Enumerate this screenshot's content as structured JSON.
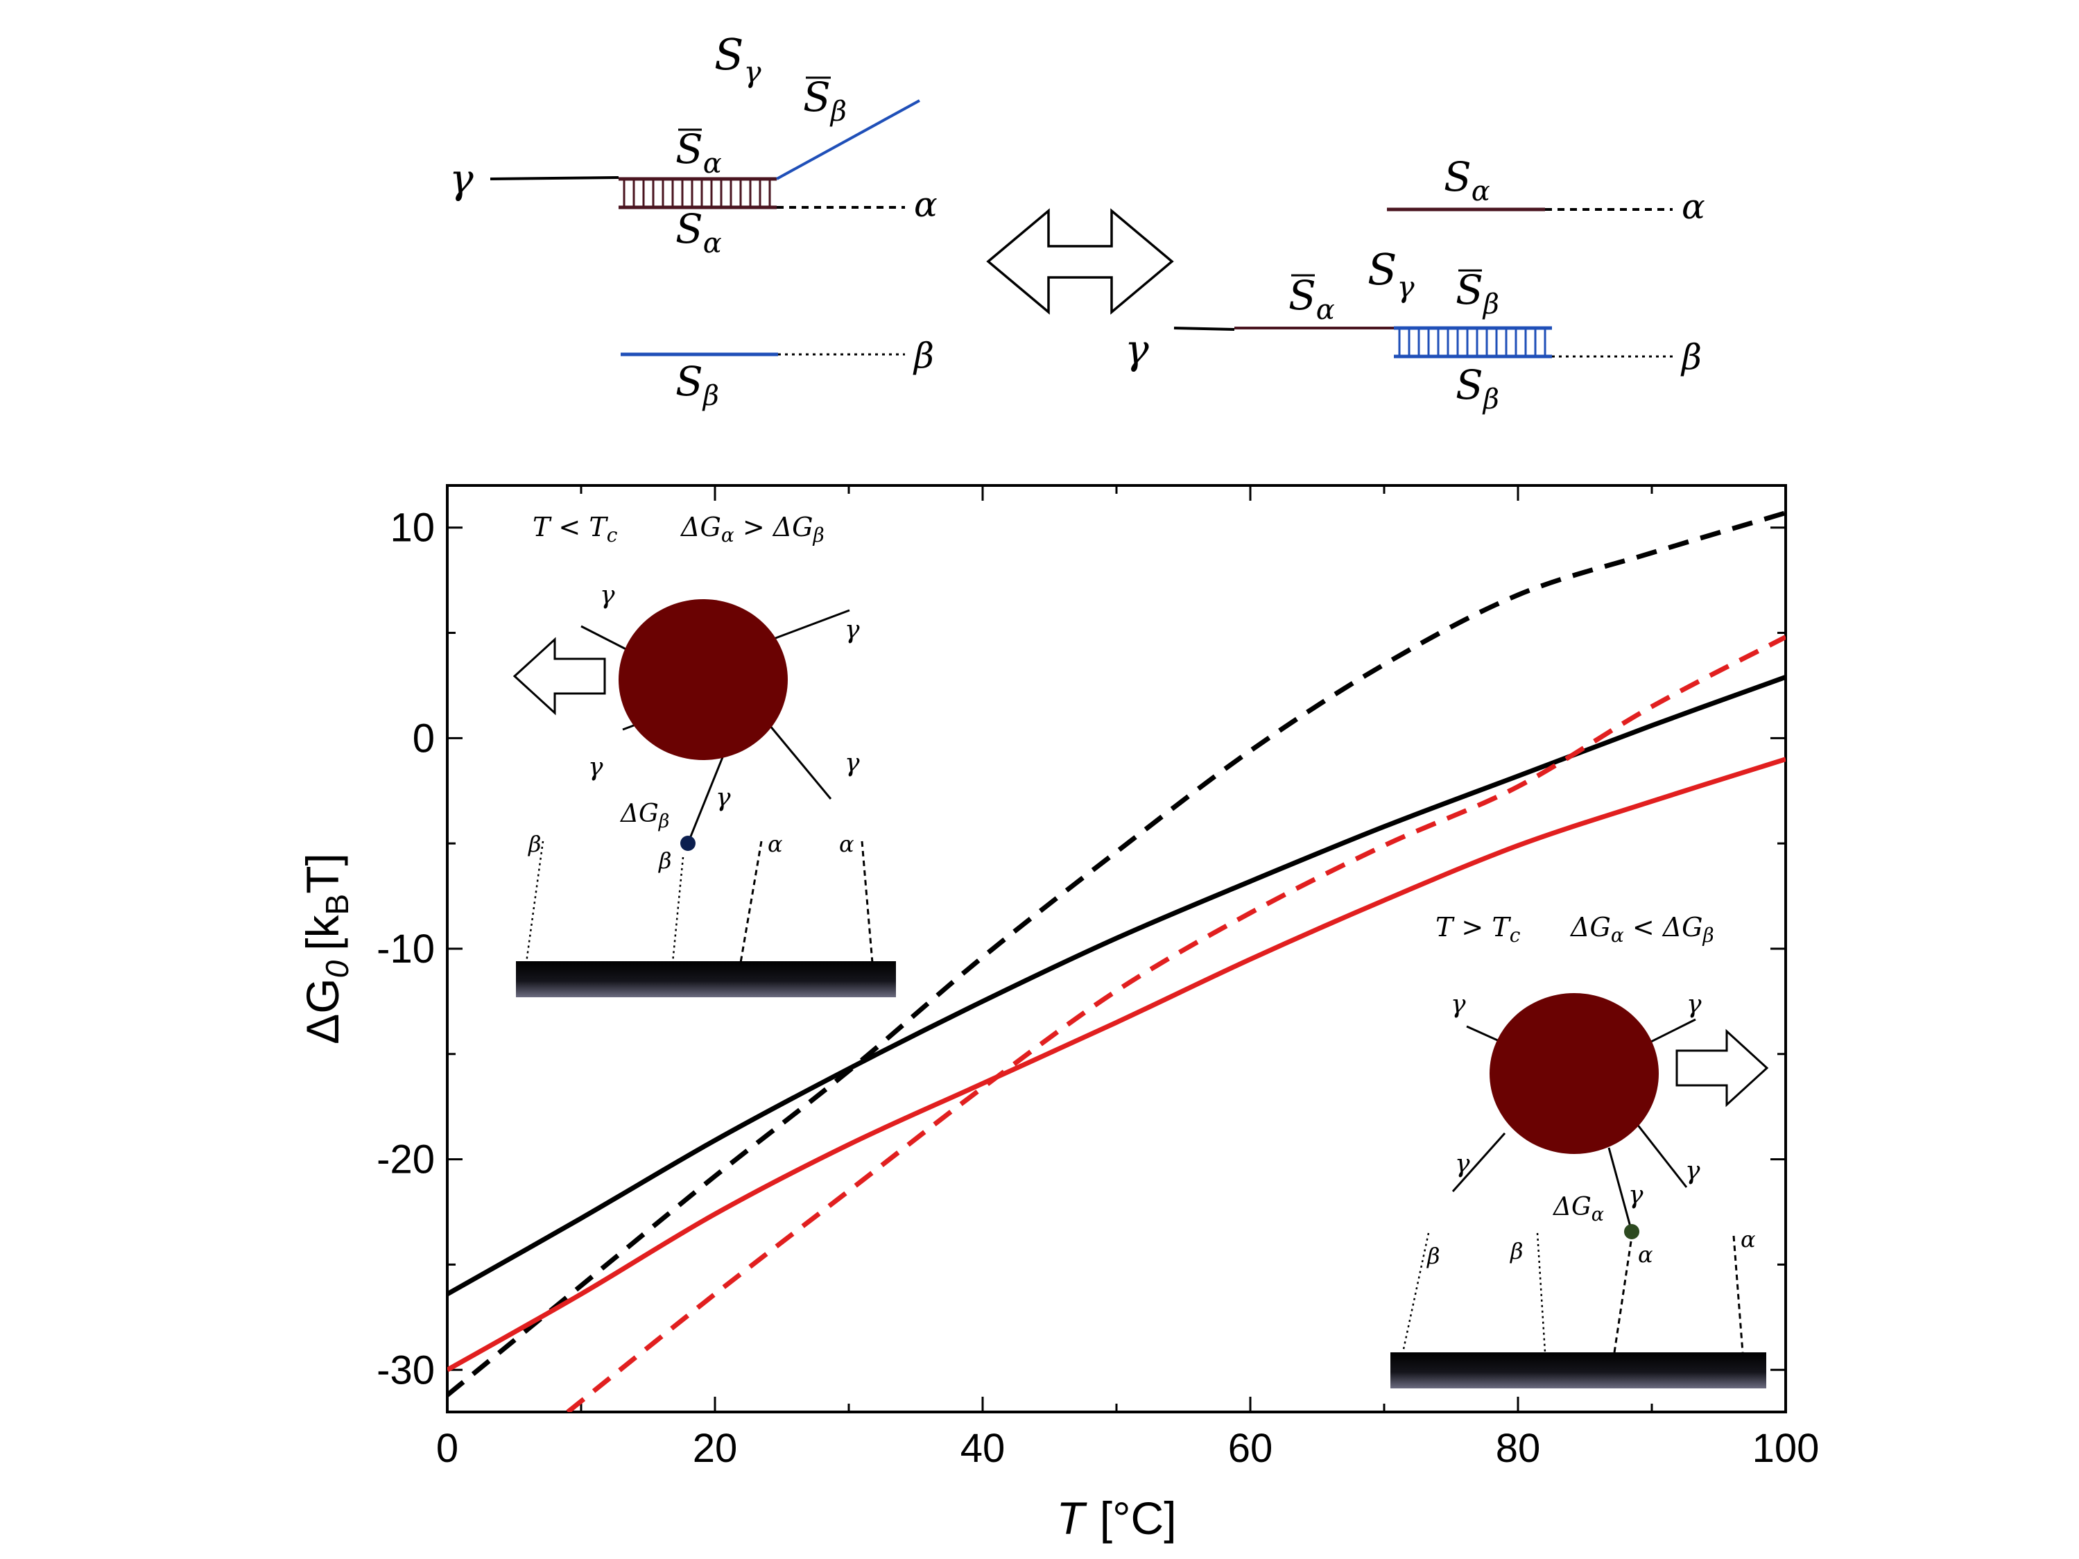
{
  "chart_data": {
    "type": "line",
    "xlabel": "T",
    "xunit": "[°C]",
    "ylabel": "ΔG",
    "ylabel_sub": "0",
    "yunit_left": "[k",
    "yunit_sub": "B",
    "yunit_right": "T]",
    "xlim": [
      0,
      100
    ],
    "ylim": [
      -32,
      12
    ],
    "xticks": [
      0,
      20,
      40,
      60,
      80,
      100
    ],
    "xtick_labels": [
      "0",
      "20",
      "40",
      "60",
      "80",
      "100"
    ],
    "yticks": [
      10,
      0,
      -10,
      -20,
      -30
    ],
    "ytick_labels": [
      "10",
      "0",
      "-10",
      "-20",
      "-30"
    ],
    "grid": false,
    "series": [
      {
        "name": "black solid",
        "color": "#000000",
        "dash": "solid",
        "x": [
          0,
          10,
          20,
          30,
          40,
          50,
          60,
          70,
          80,
          90,
          100
        ],
        "y": [
          -26.4,
          -22.8,
          -19.1,
          -15.7,
          -12.5,
          -9.5,
          -6.8,
          -4.2,
          -1.8,
          0.6,
          2.9
        ]
      },
      {
        "name": "black dashed",
        "color": "#000000",
        "dash": "dashed",
        "x": [
          0,
          10,
          20,
          30,
          40,
          50,
          60,
          70,
          80,
          90,
          100
        ],
        "y": [
          -31.2,
          -26.0,
          -20.8,
          -15.8,
          -10.4,
          -5.4,
          -0.6,
          3.5,
          6.8,
          8.8,
          10.7
        ]
      },
      {
        "name": "red solid",
        "color": "#e11f1f",
        "dash": "solid",
        "x": [
          0,
          10,
          20,
          30,
          40,
          50,
          60,
          70,
          80,
          90,
          100
        ],
        "y": [
          -30.0,
          -26.4,
          -22.6,
          -19.3,
          -16.4,
          -13.5,
          -10.5,
          -7.7,
          -5.1,
          -3.0,
          -1.0
        ]
      },
      {
        "name": "red dashed",
        "color": "#e11f1f",
        "dash": "dashed",
        "x": [
          9,
          20,
          30,
          40,
          50,
          60,
          70,
          80,
          90,
          100
        ],
        "y": [
          -32.0,
          -26.4,
          -21.5,
          -16.6,
          -12.0,
          -8.3,
          -5.1,
          -2.3,
          1.5,
          4.8
        ]
      }
    ]
  },
  "scheme": {
    "left": {
      "gamma": "γ",
      "s_gamma": "S",
      "s_gamma_sub": "γ",
      "sbar_beta": "S",
      "sbar_beta_sub": "β",
      "sbar_alpha": "S",
      "sbar_alpha_sub": "α",
      "s_alpha": "S",
      "s_alpha_sub": "α",
      "alpha": "α",
      "s_beta": "S",
      "s_beta_sub": "β",
      "beta": "β"
    },
    "right": {
      "s_alpha": "S",
      "s_alpha_sub": "α",
      "alpha": "α",
      "s_gamma": "S",
      "s_gamma_sub": "γ",
      "sbar_alpha": "S",
      "sbar_alpha_sub": "α",
      "sbar_beta": "S",
      "sbar_beta_sub": "β",
      "gamma": "γ",
      "beta": "β",
      "s_beta": "S",
      "s_beta_sub": "β"
    },
    "colors": {
      "alpha_strand": "#4a1520",
      "beta_strand": "#1f4fb8"
    }
  },
  "insets": {
    "low": {
      "condition": "T < T",
      "condition_sub": "c",
      "relation_a": "ΔG",
      "relation_a_sub": "α",
      "relation_op": " > ",
      "relation_b": "ΔG",
      "relation_b_sub": "β",
      "gamma_labels": [
        "γ",
        "γ",
        "γ",
        "γ",
        "γ"
      ],
      "bond_label": "ΔG",
      "bond_label_sub": "β",
      "surface_labels": [
        "β",
        "β",
        "α",
        "α"
      ]
    },
    "high": {
      "condition": "T > T",
      "condition_sub": "c",
      "relation_a": "ΔG",
      "relation_a_sub": "α",
      "relation_op": " < ",
      "relation_b": "ΔG",
      "relation_b_sub": "β",
      "gamma_labels": [
        "γ",
        "γ",
        "γ",
        "γ",
        "γ"
      ],
      "bond_label": "ΔG",
      "bond_label_sub": "α",
      "surface_labels": [
        "β",
        "β",
        "α",
        "α"
      ]
    },
    "colors": {
      "particle": "#6a0202",
      "dot_low": "#0c1f4f",
      "dot_high": "#2d4a20"
    }
  }
}
